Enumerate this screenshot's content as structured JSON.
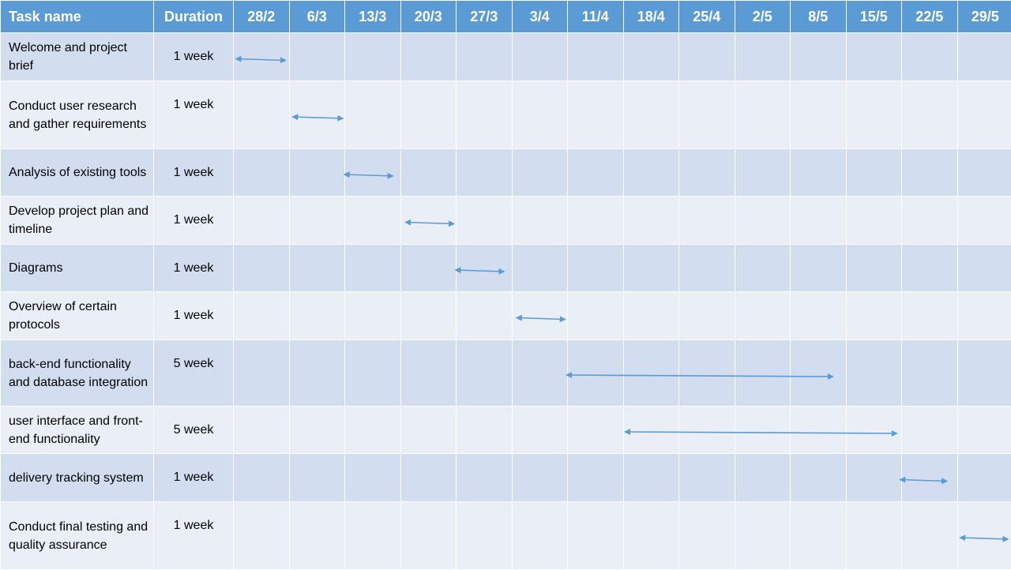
{
  "header": {
    "task_label": "Task name",
    "duration_label": "Duration"
  },
  "chart_data": {
    "type": "gantt",
    "columns": [
      "28/2",
      "6/3",
      "13/3",
      "20/3",
      "27/3",
      "3/4",
      "11/4",
      "18/4",
      "25/4",
      "2/5",
      "8/5",
      "15/5",
      "22/5",
      "29/5"
    ],
    "tasks": [
      {
        "name": "Welcome and project brief",
        "duration": "1 week",
        "start": 0.05,
        "end": 0.95
      },
      {
        "name": "Conduct user research and gather requirements",
        "duration": "1 week",
        "start": 1.07,
        "end": 1.98
      },
      {
        "name": "Analysis of existing tools",
        "duration": "1 week",
        "start": 2.0,
        "end": 2.88
      },
      {
        "name": "Develop project plan and timeline",
        "duration": "1 week",
        "start": 3.1,
        "end": 3.98
      },
      {
        "name": "Diagrams",
        "duration": "1 week",
        "start": 4.0,
        "end": 4.88
      },
      {
        "name": "Overview of certain protocols",
        "duration": "1 week",
        "start": 5.1,
        "end": 5.98
      },
      {
        "name": "back-end functionality and database integration",
        "duration": "5 week",
        "start": 6.0,
        "end": 10.8
      },
      {
        "name": "user interface and front-end functionality",
        "duration": "5 week",
        "start": 7.05,
        "end": 11.95
      },
      {
        "name": "delivery tracking system",
        "duration": "1 week",
        "start": 12.0,
        "end": 12.85
      },
      {
        "name": "Conduct final testing and quality assurance",
        "duration": "1 week",
        "start": 13.08,
        "end": 13.95
      }
    ]
  },
  "colors": {
    "header_bg": "#5b9bd5",
    "row_dark": "#d2deef",
    "row_light": "#eaeff7",
    "arrow": "#5b9bd5"
  }
}
